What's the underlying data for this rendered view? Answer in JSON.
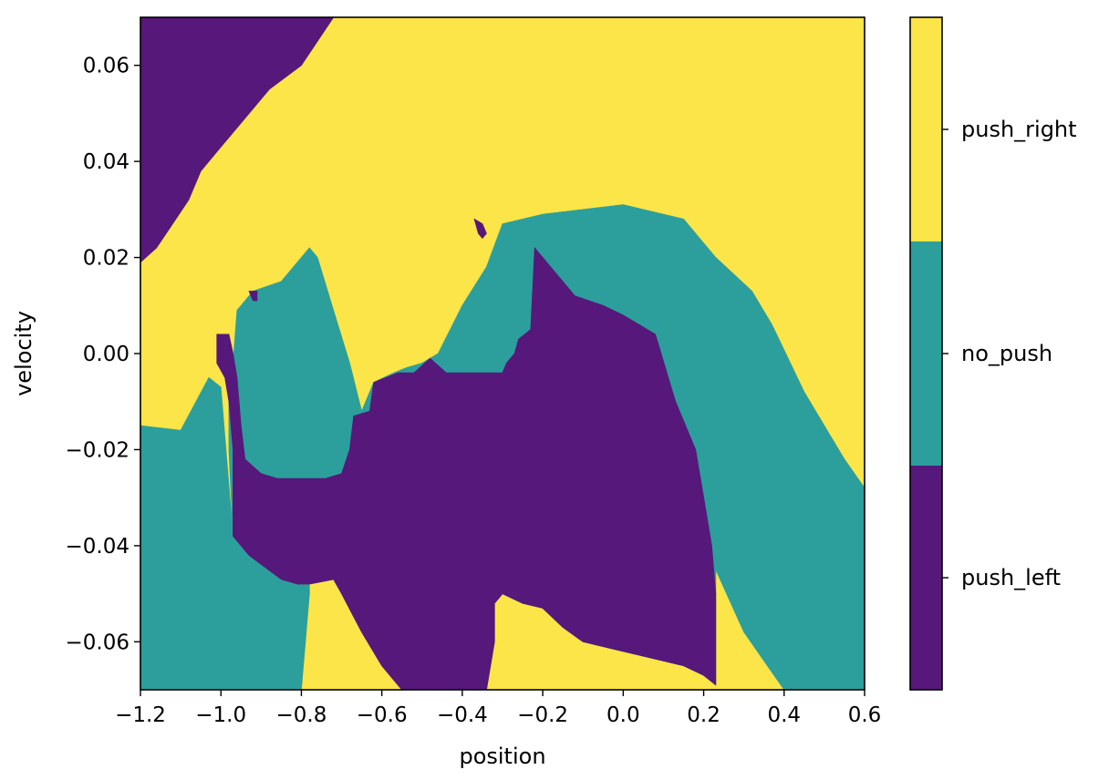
{
  "chart_data": {
    "type": "heatmap",
    "title": "",
    "xlabel": "position",
    "ylabel": "velocity",
    "xlim": [
      -1.2,
      0.6
    ],
    "ylim": [
      -0.07,
      0.07
    ],
    "x_ticks": [
      -1.2,
      -1.0,
      -0.8,
      -0.6,
      -0.4,
      -0.2,
      0.0,
      0.2,
      0.4,
      0.6
    ],
    "x_tick_labels": [
      "−1.2",
      "−1.0",
      "−0.8",
      "−0.6",
      "−0.4",
      "−0.2",
      "0.0",
      "0.2",
      "0.4",
      "0.6"
    ],
    "y_ticks": [
      -0.06,
      -0.04,
      -0.02,
      0.0,
      0.02,
      0.04,
      0.06
    ],
    "y_tick_labels": [
      "−0.06",
      "−0.04",
      "−0.02",
      "0.00",
      "0.02",
      "0.04",
      "0.06"
    ],
    "grid": false,
    "classes": [
      {
        "name": "push_left",
        "color": "#56187a"
      },
      {
        "name": "no_push",
        "color": "#2c9f9d"
      },
      {
        "name": "push_right",
        "color": "#fce548"
      }
    ],
    "background_class": "push_right",
    "regions": [
      {
        "class": "push_left",
        "polygon": [
          [
            -1.2,
            0.07
          ],
          [
            -0.72,
            0.07
          ],
          [
            -0.8,
            0.06
          ],
          [
            -0.88,
            0.055
          ],
          [
            -0.95,
            0.048
          ],
          [
            -1.0,
            0.043
          ],
          [
            -1.05,
            0.038
          ],
          [
            -1.08,
            0.032
          ],
          [
            -1.12,
            0.027
          ],
          [
            -1.16,
            0.022
          ],
          [
            -1.2,
            0.019
          ]
        ]
      },
      {
        "class": "no_push",
        "polygon": [
          [
            -1.2,
            -0.015
          ],
          [
            -1.1,
            -0.016
          ],
          [
            -1.03,
            -0.005
          ],
          [
            -1.0,
            -0.007
          ],
          [
            -0.97,
            -0.038
          ],
          [
            -0.93,
            -0.042
          ],
          [
            -0.85,
            -0.047
          ],
          [
            -0.81,
            -0.048
          ],
          [
            -0.78,
            -0.05
          ],
          [
            -0.8,
            -0.07
          ],
          [
            -1.2,
            -0.07
          ]
        ]
      },
      {
        "class": "no_push",
        "polygon": [
          [
            -0.97,
            -0.002
          ],
          [
            -0.96,
            0.009
          ],
          [
            -0.92,
            0.013
          ],
          [
            -0.85,
            0.015
          ],
          [
            -0.78,
            0.022
          ],
          [
            -0.76,
            0.02
          ],
          [
            -0.72,
            0.009
          ],
          [
            -0.68,
            -0.002
          ],
          [
            -0.65,
            -0.012
          ],
          [
            -0.62,
            -0.006
          ],
          [
            -0.57,
            -0.004
          ],
          [
            -0.54,
            -0.003
          ],
          [
            -0.5,
            -0.002
          ],
          [
            -0.46,
            0.0
          ],
          [
            -0.4,
            0.01
          ],
          [
            -0.34,
            0.018
          ],
          [
            -0.3,
            0.027
          ],
          [
            -0.2,
            0.029
          ],
          [
            -0.1,
            0.03
          ],
          [
            0.0,
            0.031
          ],
          [
            0.1,
            0.029
          ],
          [
            0.15,
            0.028
          ],
          [
            0.23,
            0.02
          ],
          [
            0.32,
            0.013
          ],
          [
            0.37,
            0.006
          ],
          [
            0.45,
            -0.008
          ],
          [
            0.55,
            -0.022
          ],
          [
            0.6,
            -0.028
          ],
          [
            0.6,
            -0.07
          ],
          [
            0.4,
            -0.07
          ],
          [
            0.3,
            -0.058
          ],
          [
            0.23,
            -0.045
          ],
          [
            0.23,
            -0.069
          ],
          [
            0.2,
            -0.067
          ],
          [
            0.15,
            -0.065
          ],
          [
            0.1,
            -0.064
          ],
          [
            0.05,
            -0.063
          ],
          [
            0.0,
            -0.062
          ],
          [
            -0.05,
            -0.061
          ],
          [
            -0.1,
            -0.06
          ],
          [
            -0.15,
            -0.057
          ],
          [
            -0.2,
            -0.053
          ],
          [
            -0.25,
            -0.052
          ],
          [
            -0.3,
            -0.05
          ],
          [
            -0.32,
            -0.052
          ],
          [
            -0.32,
            -0.06
          ],
          [
            -0.34,
            -0.07
          ],
          [
            -0.55,
            -0.07
          ],
          [
            -0.57,
            -0.068
          ],
          [
            -0.6,
            -0.065
          ],
          [
            -0.65,
            -0.058
          ],
          [
            -0.7,
            -0.05
          ],
          [
            -0.72,
            -0.047
          ],
          [
            -0.78,
            -0.048
          ],
          [
            -0.78,
            -0.05
          ],
          [
            -0.81,
            -0.048
          ],
          [
            -0.85,
            -0.047
          ],
          [
            -0.93,
            -0.042
          ],
          [
            -0.97,
            -0.038
          ],
          [
            -0.98,
            -0.02
          ],
          [
            -0.98,
            -0.005
          ]
        ]
      },
      {
        "class": "push_left",
        "polygon": [
          [
            -1.01,
            0.004
          ],
          [
            -0.98,
            0.004
          ],
          [
            -0.97,
            0.0
          ],
          [
            -0.96,
            -0.005
          ],
          [
            -0.95,
            -0.015
          ],
          [
            -0.94,
            -0.022
          ],
          [
            -0.9,
            -0.025
          ],
          [
            -0.86,
            -0.026
          ],
          [
            -0.8,
            -0.026
          ],
          [
            -0.74,
            -0.026
          ],
          [
            -0.7,
            -0.025
          ],
          [
            -0.68,
            -0.02
          ],
          [
            -0.67,
            -0.013
          ],
          [
            -0.63,
            -0.012
          ],
          [
            -0.62,
            -0.006
          ],
          [
            -0.56,
            -0.004
          ],
          [
            -0.52,
            -0.004
          ],
          [
            -0.48,
            -0.001
          ],
          [
            -0.44,
            -0.004
          ],
          [
            -0.38,
            -0.004
          ],
          [
            -0.3,
            -0.004
          ],
          [
            -0.29,
            -0.002
          ],
          [
            -0.27,
            0.0
          ],
          [
            -0.26,
            0.003
          ],
          [
            -0.23,
            0.005
          ],
          [
            -0.22,
            0.022
          ],
          [
            -0.17,
            0.017
          ],
          [
            -0.12,
            0.012
          ],
          [
            -0.05,
            0.01
          ],
          [
            0.0,
            0.008
          ],
          [
            0.08,
            0.004
          ],
          [
            0.13,
            -0.01
          ],
          [
            0.18,
            -0.02
          ],
          [
            0.2,
            -0.03
          ],
          [
            0.22,
            -0.04
          ],
          [
            0.23,
            -0.05
          ],
          [
            0.23,
            -0.069
          ],
          [
            0.2,
            -0.067
          ],
          [
            0.15,
            -0.065
          ],
          [
            0.1,
            -0.064
          ],
          [
            0.05,
            -0.063
          ],
          [
            0.0,
            -0.062
          ],
          [
            -0.05,
            -0.061
          ],
          [
            -0.1,
            -0.06
          ],
          [
            -0.15,
            -0.057
          ],
          [
            -0.2,
            -0.053
          ],
          [
            -0.25,
            -0.052
          ],
          [
            -0.3,
            -0.05
          ],
          [
            -0.32,
            -0.052
          ],
          [
            -0.32,
            -0.06
          ],
          [
            -0.34,
            -0.07
          ],
          [
            -0.55,
            -0.07
          ],
          [
            -0.57,
            -0.068
          ],
          [
            -0.6,
            -0.065
          ],
          [
            -0.65,
            -0.058
          ],
          [
            -0.7,
            -0.05
          ],
          [
            -0.72,
            -0.047
          ],
          [
            -0.78,
            -0.048
          ],
          [
            -0.81,
            -0.048
          ],
          [
            -0.85,
            -0.047
          ],
          [
            -0.93,
            -0.042
          ],
          [
            -0.97,
            -0.038
          ],
          [
            -0.97,
            -0.02
          ],
          [
            -0.98,
            -0.01
          ],
          [
            -0.99,
            -0.005
          ],
          [
            -1.01,
            -0.002
          ]
        ]
      },
      {
        "class": "push_left",
        "polygon": [
          [
            -0.37,
            0.028
          ],
          [
            -0.35,
            0.027
          ],
          [
            -0.34,
            0.025
          ],
          [
            -0.35,
            0.024
          ],
          [
            -0.36,
            0.025
          ]
        ]
      },
      {
        "class": "push_left",
        "polygon": [
          [
            -0.93,
            0.013
          ],
          [
            -0.91,
            0.013
          ],
          [
            -0.91,
            0.011
          ],
          [
            -0.92,
            0.011
          ]
        ]
      }
    ]
  },
  "colorbar": {
    "tick_labels": [
      "push_left",
      "no_push",
      "push_right"
    ]
  }
}
